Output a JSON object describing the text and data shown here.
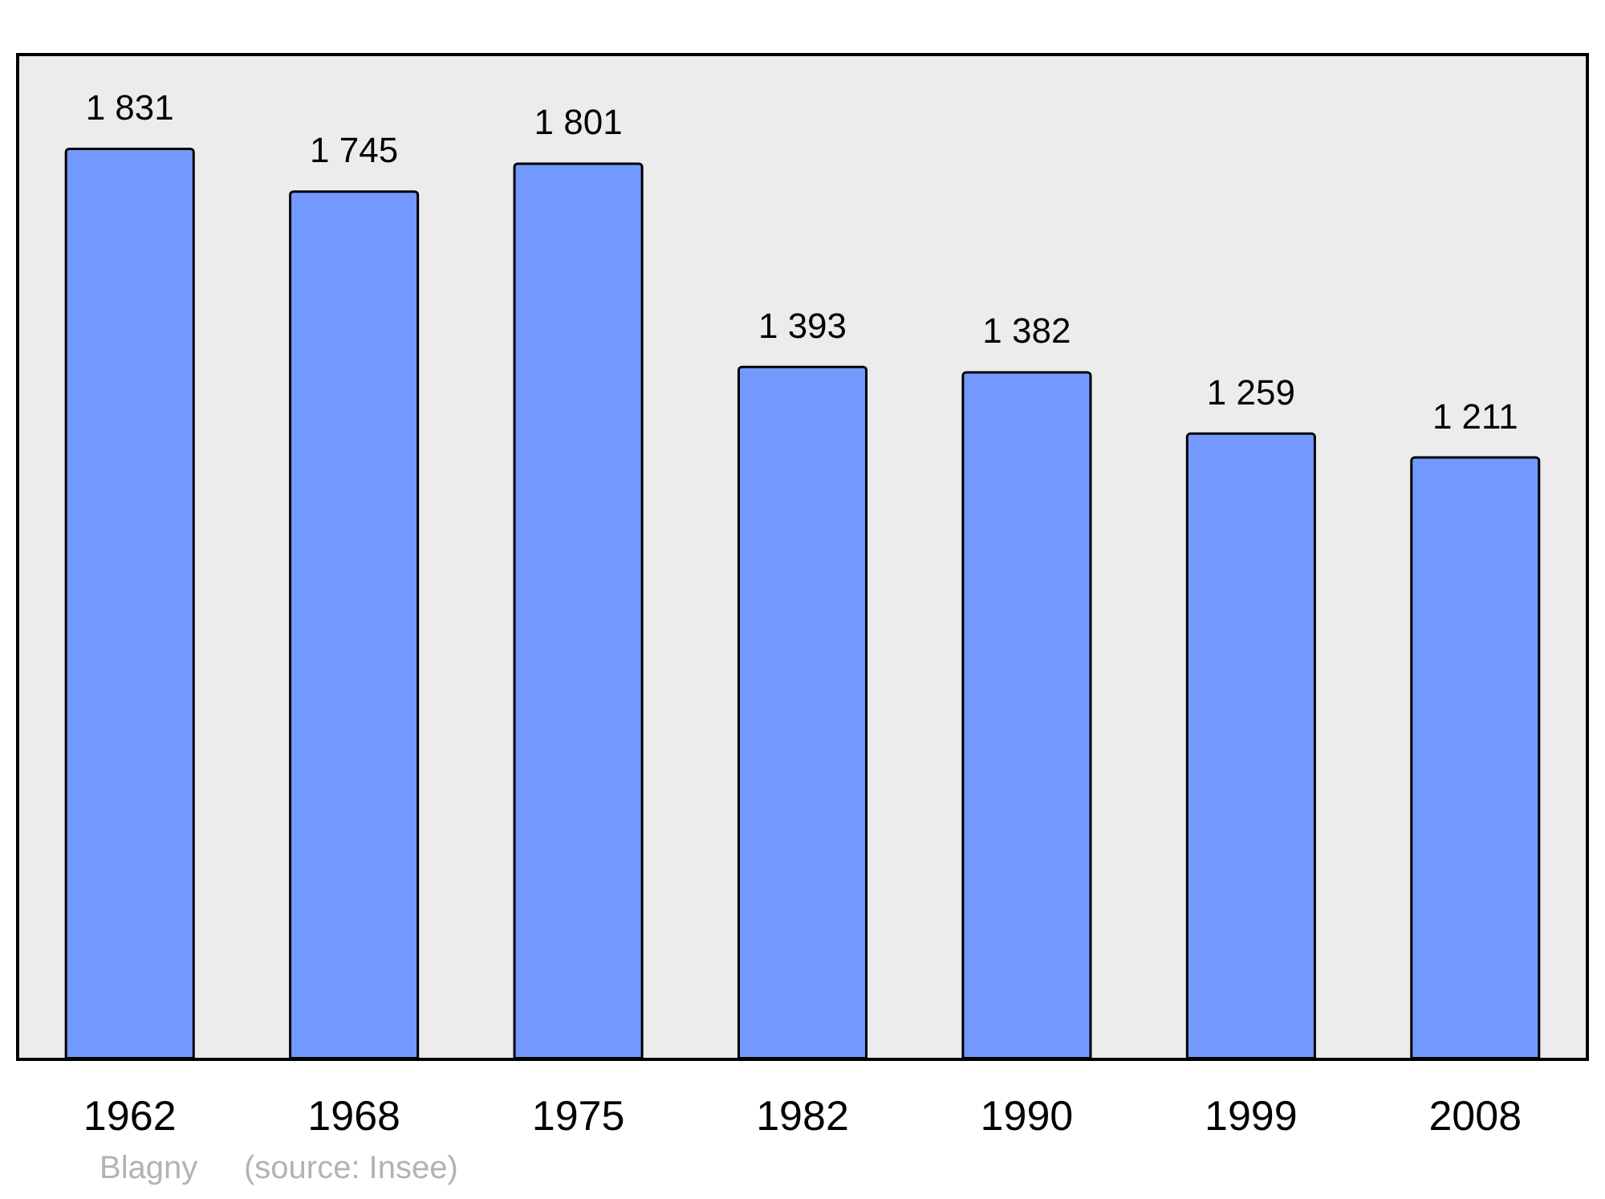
{
  "chart_data": {
    "type": "bar",
    "categories": [
      "1962",
      "1968",
      "1975",
      "1982",
      "1990",
      "1999",
      "2008"
    ],
    "values": [
      1831,
      1745,
      1801,
      1393,
      1382,
      1259,
      1211
    ],
    "value_labels": [
      "1 831",
      "1 745",
      "1 801",
      "1 393",
      "1 382",
      "1 259",
      "1 211"
    ],
    "color": "#7399ff",
    "annotations": [
      "Blagny",
      "(source: Insee)"
    ]
  }
}
